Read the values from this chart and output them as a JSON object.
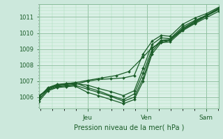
{
  "bg_color": "#cce8dc",
  "plot_bg_color": "#daf0e6",
  "grid_major_color": "#88bb99",
  "grid_minor_color": "#aaddbb",
  "line_color": "#1a5c28",
  "title": "Pression niveau de la mer( hPa )",
  "ylabel_ticks": [
    1006,
    1007,
    1008,
    1009,
    1010,
    1011
  ],
  "xlabels": [
    "Jeu",
    "Ven",
    "Sam"
  ],
  "xlabels_pos": [
    0.27,
    0.6,
    0.93
  ],
  "ylim": [
    1005.3,
    1011.8
  ],
  "xlim": [
    0.0,
    1.0
  ],
  "series": [
    [
      0.0,
      1005.85,
      0.05,
      1006.55,
      0.1,
      1006.75,
      0.15,
      1006.85,
      0.2,
      1006.9,
      0.27,
      1007.05,
      0.35,
      1007.2,
      0.43,
      1007.35,
      0.5,
      1007.6,
      0.58,
      1008.5,
      0.63,
      1009.1,
      0.68,
      1009.4,
      0.73,
      1009.55,
      0.8,
      1010.2,
      0.87,
      1010.65,
      0.93,
      1011.05,
      1.0,
      1011.5
    ],
    [
      0.0,
      1006.0,
      0.05,
      1006.6,
      0.1,
      1006.8,
      0.15,
      1006.85,
      0.2,
      1006.9,
      0.27,
      1006.6,
      0.33,
      1006.4,
      0.4,
      1006.1,
      0.47,
      1005.85,
      0.53,
      1006.2,
      0.58,
      1007.5,
      0.63,
      1009.0,
      0.68,
      1009.55,
      0.73,
      1009.6,
      0.8,
      1010.3,
      0.87,
      1010.75,
      0.93,
      1011.1,
      1.0,
      1011.55
    ],
    [
      0.0,
      1006.05,
      0.05,
      1006.55,
      0.1,
      1006.75,
      0.15,
      1006.8,
      0.2,
      1006.85,
      0.27,
      1006.75,
      0.33,
      1006.55,
      0.4,
      1006.35,
      0.47,
      1006.1,
      0.53,
      1006.4,
      0.58,
      1007.8,
      0.63,
      1009.3,
      0.68,
      1009.7,
      0.73,
      1009.65,
      0.8,
      1010.4,
      0.87,
      1010.8,
      0.93,
      1011.1,
      1.0,
      1011.5
    ],
    [
      0.0,
      1006.1,
      0.05,
      1006.5,
      0.1,
      1006.7,
      0.15,
      1006.75,
      0.2,
      1006.8,
      0.27,
      1007.0,
      0.33,
      1007.1,
      0.4,
      1007.15,
      0.47,
      1007.2,
      0.53,
      1007.35,
      0.58,
      1008.7,
      0.63,
      1009.5,
      0.68,
      1009.85,
      0.73,
      1009.8,
      0.8,
      1010.55,
      0.87,
      1010.95,
      0.93,
      1011.2,
      1.0,
      1011.6
    ],
    [
      0.0,
      1005.9,
      0.05,
      1006.45,
      0.1,
      1006.65,
      0.15,
      1006.7,
      0.2,
      1006.75,
      0.27,
      1006.5,
      0.33,
      1006.3,
      0.4,
      1006.05,
      0.47,
      1005.75,
      0.53,
      1006.0,
      0.58,
      1007.2,
      0.63,
      1008.85,
      0.68,
      1009.5,
      0.73,
      1009.55,
      0.8,
      1010.25,
      0.87,
      1010.7,
      0.93,
      1011.05,
      1.0,
      1011.45
    ],
    [
      0.0,
      1005.75,
      0.05,
      1006.4,
      0.1,
      1006.6,
      0.15,
      1006.65,
      0.2,
      1006.7,
      0.27,
      1006.3,
      0.33,
      1006.1,
      0.4,
      1005.85,
      0.47,
      1005.6,
      0.53,
      1005.85,
      0.58,
      1007.0,
      0.63,
      1008.7,
      0.68,
      1009.4,
      0.73,
      1009.45,
      0.8,
      1010.15,
      0.87,
      1010.6,
      0.93,
      1010.95,
      1.0,
      1011.35
    ]
  ]
}
